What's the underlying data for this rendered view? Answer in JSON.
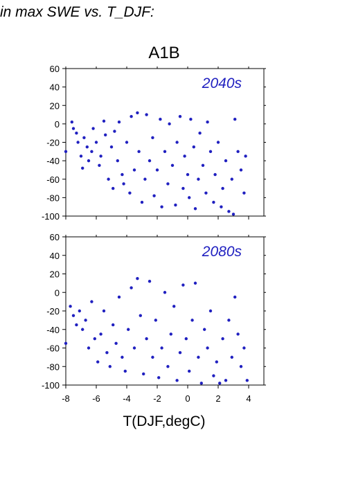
{
  "header": {
    "text": "in max SWE vs. T_DJF:"
  },
  "figure": {
    "title": "A1B",
    "xlabel": "T(DJF,degC)",
    "accent_color": "#2020c0"
  },
  "chart_data": [
    {
      "type": "scatter",
      "title": "A1B",
      "annotation": "2040s",
      "xlabel": "",
      "ylabel": "",
      "xlim": [
        -8,
        5
      ],
      "ylim": [
        -100,
        60
      ],
      "xticks": [
        -8,
        -6,
        -4,
        -2,
        0,
        2,
        4
      ],
      "yticks": [
        -100,
        -80,
        -60,
        -40,
        -20,
        0,
        20,
        40,
        60
      ],
      "grid": false,
      "marker_color": "#2020c0",
      "series": [
        {
          "points": [
            [
              -8.0,
              -30
            ],
            [
              -7.6,
              2
            ],
            [
              -7.5,
              -5
            ],
            [
              -7.3,
              -10
            ],
            [
              -7.2,
              -20
            ],
            [
              -7.0,
              -35
            ],
            [
              -6.9,
              -48
            ],
            [
              -6.8,
              -15
            ],
            [
              -6.6,
              -25
            ],
            [
              -6.5,
              -40
            ],
            [
              -6.3,
              -30
            ],
            [
              -6.2,
              -5
            ],
            [
              -6.0,
              -20
            ],
            [
              -5.8,
              -45
            ],
            [
              -5.7,
              -35
            ],
            [
              -5.5,
              3
            ],
            [
              -5.4,
              -12
            ],
            [
              -5.2,
              -60
            ],
            [
              -5.0,
              -25
            ],
            [
              -4.9,
              -70
            ],
            [
              -4.8,
              -8
            ],
            [
              -4.6,
              -40
            ],
            [
              -4.5,
              2
            ],
            [
              -4.3,
              -55
            ],
            [
              -4.2,
              -65
            ],
            [
              -4.0,
              -20
            ],
            [
              -3.8,
              -75
            ],
            [
              -3.7,
              8
            ],
            [
              -3.5,
              -50
            ],
            [
              -3.3,
              12
            ],
            [
              -3.2,
              -30
            ],
            [
              -3.0,
              -85
            ],
            [
              -2.8,
              -60
            ],
            [
              -2.7,
              10
            ],
            [
              -2.5,
              -40
            ],
            [
              -2.3,
              -15
            ],
            [
              -2.2,
              -78
            ],
            [
              -2.0,
              -50
            ],
            [
              -1.8,
              5
            ],
            [
              -1.7,
              -90
            ],
            [
              -1.5,
              -30
            ],
            [
              -1.3,
              -65
            ],
            [
              -1.2,
              0
            ],
            [
              -1.0,
              -45
            ],
            [
              -0.8,
              -88
            ],
            [
              -0.7,
              -20
            ],
            [
              -0.5,
              8
            ],
            [
              -0.3,
              -70
            ],
            [
              -0.2,
              -35
            ],
            [
              0.0,
              -55
            ],
            [
              0.1,
              -80
            ],
            [
              0.2,
              5
            ],
            [
              0.4,
              -25
            ],
            [
              0.5,
              -92
            ],
            [
              0.7,
              -60
            ],
            [
              0.8,
              -10
            ],
            [
              1.0,
              -45
            ],
            [
              1.2,
              -75
            ],
            [
              1.3,
              2
            ],
            [
              1.5,
              -30
            ],
            [
              1.7,
              -85
            ],
            [
              1.8,
              -55
            ],
            [
              2.0,
              -20
            ],
            [
              2.2,
              -90
            ],
            [
              2.3,
              -70
            ],
            [
              2.5,
              -40
            ],
            [
              2.7,
              -95
            ],
            [
              2.9,
              -60
            ],
            [
              3.0,
              -98
            ],
            [
              3.1,
              5
            ],
            [
              3.3,
              -30
            ],
            [
              3.5,
              -50
            ],
            [
              3.7,
              -75
            ],
            [
              3.8,
              -35
            ]
          ]
        }
      ]
    },
    {
      "type": "scatter",
      "annotation": "2080s",
      "xlabel": "T(DJF,degC)",
      "ylabel": "",
      "xlim": [
        -8,
        5
      ],
      "ylim": [
        -100,
        60
      ],
      "xticks": [
        -8,
        -6,
        -4,
        -2,
        0,
        2,
        4
      ],
      "yticks": [
        -100,
        -80,
        -60,
        -40,
        -20,
        0,
        20,
        40,
        60
      ],
      "grid": false,
      "marker_color": "#2020c0",
      "series": [
        {
          "points": [
            [
              -8.0,
              -55
            ],
            [
              -7.7,
              -15
            ],
            [
              -7.5,
              -25
            ],
            [
              -7.3,
              -35
            ],
            [
              -7.1,
              -20
            ],
            [
              -6.9,
              -40
            ],
            [
              -6.7,
              -30
            ],
            [
              -6.5,
              -60
            ],
            [
              -6.3,
              -10
            ],
            [
              -6.1,
              -50
            ],
            [
              -5.9,
              -75
            ],
            [
              -5.7,
              -45
            ],
            [
              -5.5,
              -20
            ],
            [
              -5.3,
              -65
            ],
            [
              -5.1,
              -80
            ],
            [
              -4.9,
              -35
            ],
            [
              -4.7,
              -55
            ],
            [
              -4.5,
              -5
            ],
            [
              -4.3,
              -70
            ],
            [
              -4.1,
              -85
            ],
            [
              -3.9,
              -40
            ],
            [
              -3.7,
              5
            ],
            [
              -3.5,
              -60
            ],
            [
              -3.3,
              15
            ],
            [
              -3.1,
              -25
            ],
            [
              -2.9,
              -88
            ],
            [
              -2.7,
              -50
            ],
            [
              -2.5,
              12
            ],
            [
              -2.3,
              -70
            ],
            [
              -2.1,
              -30
            ],
            [
              -1.9,
              -92
            ],
            [
              -1.7,
              -60
            ],
            [
              -1.5,
              0
            ],
            [
              -1.3,
              -80
            ],
            [
              -1.1,
              -45
            ],
            [
              -0.9,
              -15
            ],
            [
              -0.7,
              -95
            ],
            [
              -0.5,
              -65
            ],
            [
              -0.3,
              8
            ],
            [
              -0.1,
              -50
            ],
            [
              0.1,
              -85
            ],
            [
              0.3,
              -30
            ],
            [
              0.5,
              10
            ],
            [
              0.7,
              -70
            ],
            [
              0.9,
              -98
            ],
            [
              1.1,
              -40
            ],
            [
              1.3,
              -60
            ],
            [
              1.5,
              -20
            ],
            [
              1.7,
              -90
            ],
            [
              1.9,
              -75
            ],
            [
              2.1,
              -98
            ],
            [
              2.3,
              -50
            ],
            [
              2.5,
              -95
            ],
            [
              2.7,
              -30
            ],
            [
              2.9,
              -70
            ],
            [
              3.1,
              -5
            ],
            [
              3.3,
              -45
            ],
            [
              3.5,
              -80
            ],
            [
              3.7,
              -60
            ],
            [
              3.9,
              -95
            ]
          ]
        }
      ]
    }
  ]
}
